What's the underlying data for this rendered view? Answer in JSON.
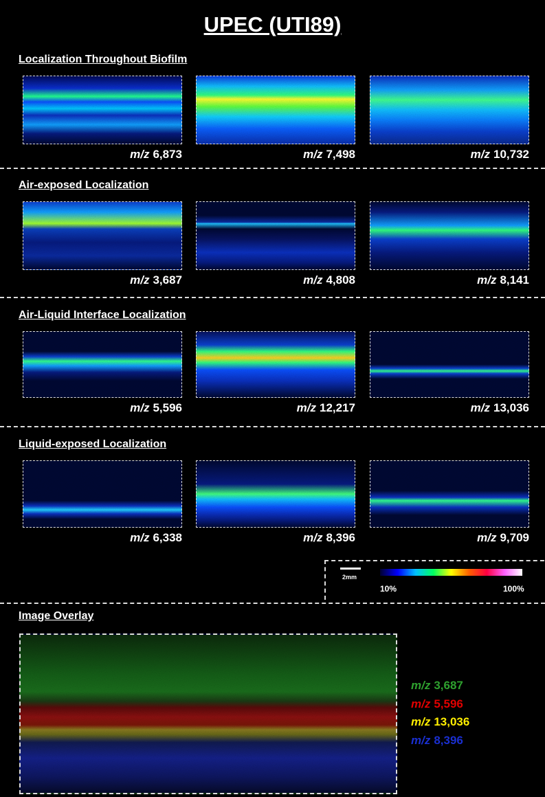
{
  "title": "UPEC (UTI89)",
  "mz_prefix": "m/z",
  "sections": [
    {
      "title": "Localization Throughout Biofilm",
      "panels": [
        "6,873",
        "7,498",
        "10,732"
      ]
    },
    {
      "title": "Air-exposed Localization",
      "panels": [
        "3,687",
        "4,808",
        "8,141"
      ]
    },
    {
      "title": "Air-Liquid Interface Localization",
      "panels": [
        "5,596",
        "12,217",
        "13,036"
      ]
    },
    {
      "title": "Liquid-exposed Localization",
      "panels": [
        "6,338",
        "8,396",
        "9,709"
      ]
    }
  ],
  "scale_bar": "2mm",
  "colorbar": {
    "min_label": "10%",
    "max_label": "100%"
  },
  "overlay": {
    "title": "Image Overlay",
    "legend": [
      {
        "label": "3,687",
        "color": "#2ea02e"
      },
      {
        "label": "5,596",
        "color": "#e00000"
      },
      {
        "label": "13,036",
        "color": "#ffee00"
      },
      {
        "label": "8,396",
        "color": "#1a2fd0"
      }
    ]
  }
}
